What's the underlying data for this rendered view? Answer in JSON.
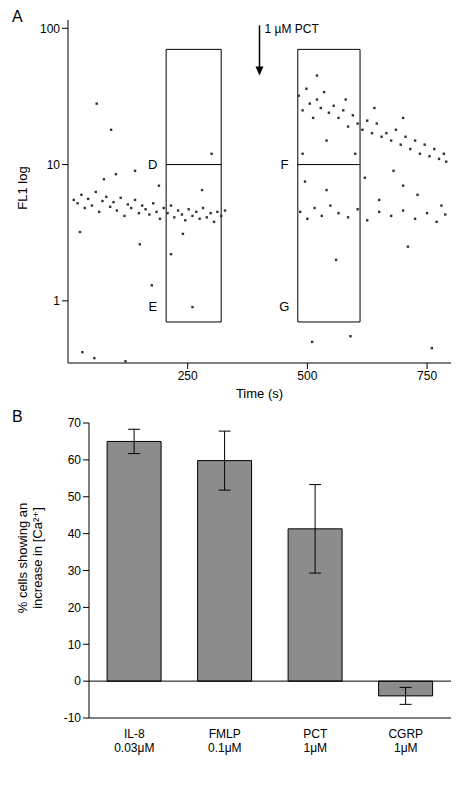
{
  "chart_data": [
    {
      "type": "scatter",
      "title": "A",
      "x_label": "Time (s)",
      "y_label": "FL1 log",
      "log": "y",
      "color": "#333333",
      "marker": "square",
      "xlim": [
        0,
        800
      ],
      "xticks": [
        250,
        500,
        750
      ],
      "ylim": [
        0.35,
        115
      ],
      "yticks": [
        1,
        10,
        100
      ],
      "x": [
        12,
        20,
        28,
        35,
        42,
        50,
        58,
        65,
        72,
        80,
        88,
        95,
        102,
        110,
        118,
        125,
        132,
        140,
        148,
        155,
        162,
        170,
        178,
        185,
        192,
        200,
        208,
        215,
        222,
        230,
        238,
        245,
        252,
        260,
        268,
        275,
        282,
        290,
        298,
        305,
        30,
        55,
        90,
        140,
        175,
        215,
        260,
        300,
        60,
        120,
        312,
        320,
        328,
        25,
        75,
        190,
        240,
        150,
        280,
        100,
        482,
        490,
        498,
        505,
        512,
        520,
        528,
        535,
        545,
        555,
        565,
        575,
        585,
        595,
        605,
        615,
        625,
        635,
        645,
        655,
        665,
        675,
        685,
        695,
        705,
        715,
        725,
        735,
        745,
        755,
        765,
        775,
        785,
        790,
        700,
        640,
        580,
        520,
        600,
        680,
        485,
        500,
        515,
        530,
        548,
        565,
        585,
        605,
        625,
        650,
        675,
        700,
        725,
        750,
        770,
        788,
        495,
        540,
        620,
        710,
        510,
        560,
        650,
        730,
        760,
        590,
        490,
        700,
        540,
        780
      ],
      "values": [
        5.5,
        5.2,
        6.0,
        4.8,
        5.6,
        5.0,
        6.3,
        4.5,
        5.4,
        5.8,
        4.9,
        5.3,
        4.6,
        5.7,
        4.2,
        5.1,
        4.8,
        5.5,
        4.4,
        5.0,
        4.7,
        4.3,
        5.2,
        4.5,
        4.0,
        4.8,
        4.4,
        5.0,
        4.1,
        4.6,
        4.3,
        3.9,
        4.7,
        4.2,
        4.5,
        4.0,
        4.8,
        4.1,
        4.4,
        3.8,
        0.42,
        0.38,
        18,
        9,
        1.3,
        2.2,
        0.9,
        12,
        28,
        0.36,
        4.5,
        4.2,
        4.6,
        3.2,
        7.8,
        7.0,
        3.1,
        2.6,
        6.5,
        8.5,
        32,
        25,
        36,
        28,
        22,
        30,
        26,
        34,
        24,
        27,
        22,
        25,
        19,
        23,
        20,
        18,
        21,
        17,
        20,
        16,
        17,
        15,
        18,
        14,
        16,
        13,
        15,
        12,
        14,
        11.5,
        13,
        11,
        12,
        10.5,
        22,
        26,
        30,
        45,
        12,
        9,
        4.5,
        4.0,
        4.8,
        4.2,
        5.0,
        4.4,
        4.1,
        4.7,
        3.9,
        4.5,
        4.2,
        4.6,
        4.0,
        4.4,
        3.8,
        4.3,
        7.5,
        6.5,
        8,
        2.5,
        0.5,
        2.0,
        5.5,
        6.0,
        0.45,
        0.55,
        12,
        7,
        15,
        5
      ],
      "regions": [
        {
          "x": [
            205,
            320
          ],
          "y": [
            0.7,
            70
          ],
          "split": 10,
          "labels": [
            "D",
            "E"
          ]
        },
        {
          "x": [
            480,
            610
          ],
          "y": [
            0.7,
            70
          ],
          "split": 10,
          "labels": [
            "F",
            "G"
          ]
        }
      ],
      "annotations": [
        {
          "text": "1 µM PCT",
          "x": 400
        }
      ]
    },
    {
      "type": "bar",
      "title": "B",
      "y_label": "% cells showing an\nincrease in [Ca²⁺]",
      "color": "#8c8c8c",
      "categories": [
        "IL-8\n0.03μM",
        "FMLP\n0.1μM",
        "PCT\n1μM",
        "CGRP\n1μM"
      ],
      "values": [
        65,
        59.8,
        41.3,
        -4
      ],
      "errors": [
        3.3,
        8,
        12,
        2.3
      ],
      "ylim": [
        -10,
        70
      ],
      "yticks": [
        -10,
        0,
        10,
        20,
        30,
        40,
        50,
        60,
        70
      ]
    }
  ]
}
